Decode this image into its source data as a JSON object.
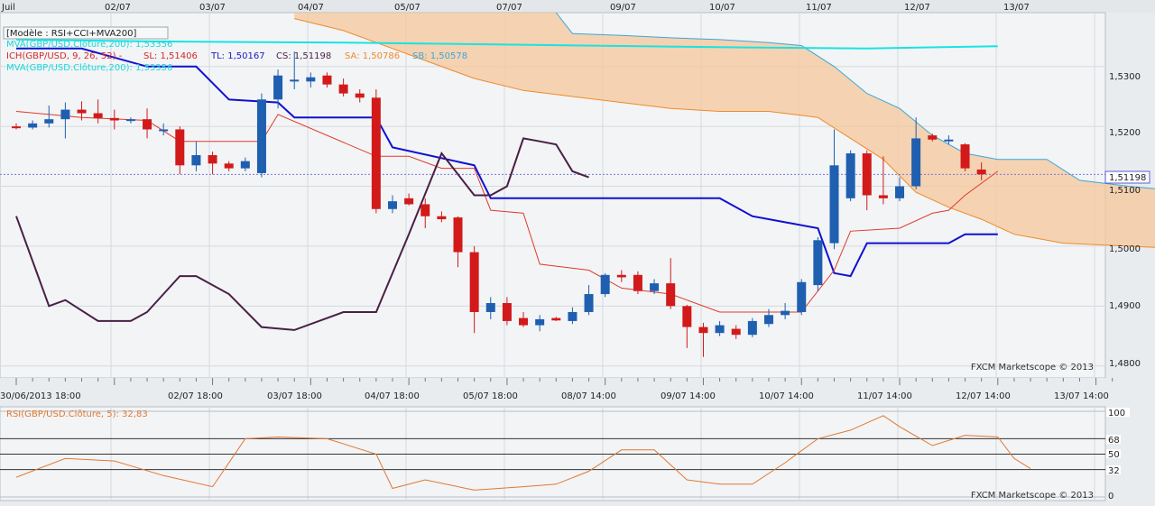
{
  "top_axis": {
    "labels": [
      "Juil",
      "02/07",
      "03/07",
      "04/07",
      "05/07",
      "07/07",
      "09/07",
      "10/07",
      "11/07",
      "12/07",
      "13/07"
    ]
  },
  "main_panel": {
    "template_label": "[Modèle : RSI+CCI+MVA200]",
    "legend_mva_top": "MVA(GBP/USD.Clôture,200): 1,53356",
    "legend_ich_name": "ICH(GBP/USD, 9, 26, 52) -",
    "legend_sl": "SL: 1,51406",
    "legend_tl": "TL: 1,50167",
    "legend_cs": "CS: 1,51198",
    "legend_sa": "SA: 1,50786",
    "legend_sb": "SB: 1,50578",
    "legend_mva_bottom": "MVA(GBP/USD.Clôture,200): 1,53356",
    "price_labels": [
      "1,5300",
      "1,5200",
      "1,5100",
      "1,5000",
      "1,4900",
      "1,4800"
    ],
    "current_price_label": "1,51198",
    "watermark": "FXCM Marketscope © 2013"
  },
  "bottom_axis": {
    "labels": [
      "30/06/2013 18:00",
      "02/07 18:00",
      "03/07 18:00",
      "04/07 18:00",
      "05/07 18:00",
      "08/07 14:00",
      "09/07 14:00",
      "10/07 14:00",
      "11/07 14:00",
      "12/07 14:00",
      "13/07 14:00"
    ]
  },
  "rsi_panel": {
    "legend": "RSI(GBP/USD.Clôture, 5): 32,83",
    "levels": [
      "100",
      "68",
      "50",
      "32",
      "0"
    ],
    "watermark": "FXCM Marketscope © 2013"
  },
  "colors": {
    "bull": "#1f5fb0",
    "bear": "#d21a1a",
    "mva": "#19e3e3",
    "tenkan": "#e03a2a",
    "kijun": "#1010d0",
    "chikou": "#4a1f44",
    "span_a": "#f08a2a",
    "span_b": "#3aa8d8",
    "cloud": "#f5c79a",
    "rsi": "#e07830"
  },
  "chart_data": {
    "type": "candlestick",
    "symbol": "GBP/USD",
    "ylim": [
      1.478,
      1.539
    ],
    "candles": [
      {
        "o": 1.52,
        "h": 1.5205,
        "l": 1.5195,
        "c": 1.5198
      },
      {
        "o": 1.5198,
        "h": 1.521,
        "l": 1.5195,
        "c": 1.5205
      },
      {
        "o": 1.5205,
        "h": 1.5235,
        "l": 1.5198,
        "c": 1.5212
      },
      {
        "o": 1.5212,
        "h": 1.524,
        "l": 1.518,
        "c": 1.5228
      },
      {
        "o": 1.5228,
        "h": 1.5242,
        "l": 1.521,
        "c": 1.5222
      },
      {
        "o": 1.5222,
        "h": 1.5245,
        "l": 1.5205,
        "c": 1.5214
      },
      {
        "o": 1.5214,
        "h": 1.5228,
        "l": 1.5195,
        "c": 1.521
      },
      {
        "o": 1.521,
        "h": 1.5215,
        "l": 1.5205,
        "c": 1.5212
      },
      {
        "o": 1.5212,
        "h": 1.523,
        "l": 1.518,
        "c": 1.5195
      },
      {
        "o": 1.5195,
        "h": 1.5205,
        "l": 1.5185,
        "c": 1.5195
      },
      {
        "o": 1.5195,
        "h": 1.52,
        "l": 1.512,
        "c": 1.5135
      },
      {
        "o": 1.5135,
        "h": 1.5175,
        "l": 1.5125,
        "c": 1.5152
      },
      {
        "o": 1.5152,
        "h": 1.5158,
        "l": 1.512,
        "c": 1.5138
      },
      {
        "o": 1.5138,
        "h": 1.5142,
        "l": 1.5125,
        "c": 1.513
      },
      {
        "o": 1.513,
        "h": 1.5148,
        "l": 1.5125,
        "c": 1.5142
      },
      {
        "o": 1.5122,
        "h": 1.5255,
        "l": 1.5115,
        "c": 1.5245
      },
      {
        "o": 1.5245,
        "h": 1.5295,
        "l": 1.523,
        "c": 1.5285
      },
      {
        "o": 1.5275,
        "h": 1.5325,
        "l": 1.5262,
        "c": 1.5278
      },
      {
        "o": 1.5275,
        "h": 1.529,
        "l": 1.5265,
        "c": 1.5282
      },
      {
        "o": 1.5285,
        "h": 1.529,
        "l": 1.5265,
        "c": 1.527
      },
      {
        "o": 1.527,
        "h": 1.528,
        "l": 1.525,
        "c": 1.5255
      },
      {
        "o": 1.5255,
        "h": 1.5262,
        "l": 1.524,
        "c": 1.5248
      },
      {
        "o": 1.5248,
        "h": 1.5262,
        "l": 1.5055,
        "c": 1.5062
      },
      {
        "o": 1.5062,
        "h": 1.5085,
        "l": 1.5055,
        "c": 1.5075
      },
      {
        "o": 1.508,
        "h": 1.5088,
        "l": 1.5068,
        "c": 1.507
      },
      {
        "o": 1.507,
        "h": 1.508,
        "l": 1.503,
        "c": 1.505
      },
      {
        "o": 1.505,
        "h": 1.5058,
        "l": 1.504,
        "c": 1.5045
      },
      {
        "o": 1.5048,
        "h": 1.505,
        "l": 1.4965,
        "c": 1.499
      },
      {
        "o": 1.499,
        "h": 1.5,
        "l": 1.4855,
        "c": 1.489
      },
      {
        "o": 1.489,
        "h": 1.4915,
        "l": 1.4878,
        "c": 1.4905
      },
      {
        "o": 1.4905,
        "h": 1.4915,
        "l": 1.4868,
        "c": 1.4875
      },
      {
        "o": 1.488,
        "h": 1.489,
        "l": 1.4865,
        "c": 1.4868
      },
      {
        "o": 1.4868,
        "h": 1.4885,
        "l": 1.4858,
        "c": 1.4878
      },
      {
        "o": 1.488,
        "h": 1.4882,
        "l": 1.4875,
        "c": 1.4876
      },
      {
        "o": 1.4875,
        "h": 1.4898,
        "l": 1.487,
        "c": 1.489
      },
      {
        "o": 1.489,
        "h": 1.4935,
        "l": 1.4885,
        "c": 1.492
      },
      {
        "o": 1.492,
        "h": 1.4955,
        "l": 1.4915,
        "c": 1.4952
      },
      {
        "o": 1.4952,
        "h": 1.496,
        "l": 1.494,
        "c": 1.4948
      },
      {
        "o": 1.4952,
        "h": 1.4958,
        "l": 1.492,
        "c": 1.4925
      },
      {
        "o": 1.4925,
        "h": 1.4945,
        "l": 1.492,
        "c": 1.4938
      },
      {
        "o": 1.4938,
        "h": 1.498,
        "l": 1.4895,
        "c": 1.49
      },
      {
        "o": 1.49,
        "h": 1.4902,
        "l": 1.483,
        "c": 1.4865
      },
      {
        "o": 1.4865,
        "h": 1.4872,
        "l": 1.4815,
        "c": 1.4855
      },
      {
        "o": 1.4855,
        "h": 1.4875,
        "l": 1.485,
        "c": 1.4868
      },
      {
        "o": 1.4862,
        "h": 1.4868,
        "l": 1.4845,
        "c": 1.4852
      },
      {
        "o": 1.4852,
        "h": 1.488,
        "l": 1.4848,
        "c": 1.4875
      },
      {
        "o": 1.487,
        "h": 1.4895,
        "l": 1.4865,
        "c": 1.4885
      },
      {
        "o": 1.4885,
        "h": 1.4905,
        "l": 1.4878,
        "c": 1.4892
      },
      {
        "o": 1.489,
        "h": 1.4945,
        "l": 1.4885,
        "c": 1.494
      },
      {
        "o": 1.4935,
        "h": 1.5015,
        "l": 1.4925,
        "c": 1.501
      },
      {
        "o": 1.5005,
        "h": 1.5195,
        "l": 1.4995,
        "c": 1.5135
      },
      {
        "o": 1.508,
        "h": 1.516,
        "l": 1.5075,
        "c": 1.5155
      },
      {
        "o": 1.5155,
        "h": 1.516,
        "l": 1.506,
        "c": 1.5085
      },
      {
        "o": 1.5085,
        "h": 1.515,
        "l": 1.507,
        "c": 1.508
      },
      {
        "o": 1.508,
        "h": 1.5115,
        "l": 1.5075,
        "c": 1.51
      },
      {
        "o": 1.51,
        "h": 1.5215,
        "l": 1.5095,
        "c": 1.518
      },
      {
        "o": 1.5185,
        "h": 1.5188,
        "l": 1.5175,
        "c": 1.5178
      },
      {
        "o": 1.5175,
        "h": 1.5185,
        "l": 1.517,
        "c": 1.5178
      },
      {
        "o": 1.517,
        "h": 1.5172,
        "l": 1.5125,
        "c": 1.513
      },
      {
        "o": 1.5128,
        "h": 1.514,
        "l": 1.511,
        "c": 1.512
      }
    ],
    "mva200": [
      [
        0,
        1.5345
      ],
      [
        8,
        1.5342
      ],
      [
        20,
        1.534
      ],
      [
        32,
        1.5336
      ],
      [
        44,
        1.5332
      ],
      [
        52,
        1.533
      ],
      [
        60,
        1.5334
      ]
    ],
    "tenkan": [
      [
        0,
        1.5225
      ],
      [
        4,
        1.5215
      ],
      [
        8,
        1.521
      ],
      [
        10,
        1.5175
      ],
      [
        13,
        1.5175
      ],
      [
        15,
        1.5175
      ],
      [
        16,
        1.522
      ],
      [
        22,
        1.515
      ],
      [
        24,
        1.515
      ],
      [
        26,
        1.513
      ],
      [
        28,
        1.513
      ],
      [
        29,
        1.506
      ],
      [
        31,
        1.5055
      ],
      [
        32,
        1.497
      ],
      [
        35,
        1.496
      ],
      [
        37,
        1.493
      ],
      [
        40,
        1.492
      ],
      [
        43,
        1.489
      ],
      [
        48,
        1.489
      ],
      [
        50,
        1.496
      ],
      [
        51,
        1.5025
      ],
      [
        54,
        1.503
      ],
      [
        56,
        1.5055
      ],
      [
        57,
        1.506
      ],
      [
        58,
        1.5085
      ],
      [
        60,
        1.5125
      ]
    ],
    "kijun": [
      [
        0,
        1.533
      ],
      [
        4,
        1.533
      ],
      [
        8,
        1.53
      ],
      [
        11,
        1.53
      ],
      [
        13,
        1.5245
      ],
      [
        16,
        1.524
      ],
      [
        17,
        1.5215
      ],
      [
        22,
        1.5215
      ],
      [
        23,
        1.5165
      ],
      [
        28,
        1.5135
      ],
      [
        29,
        1.508
      ],
      [
        43,
        1.508
      ],
      [
        45,
        1.505
      ],
      [
        47,
        1.504
      ],
      [
        49,
        1.503
      ],
      [
        50,
        1.4955
      ],
      [
        51,
        1.495
      ],
      [
        52,
        1.5005
      ],
      [
        57,
        1.5005
      ],
      [
        58,
        1.502
      ],
      [
        60,
        1.502
      ]
    ],
    "chikou": [
      [
        0,
        1.505
      ],
      [
        2,
        1.49
      ],
      [
        3,
        1.491
      ],
      [
        5,
        1.4875
      ],
      [
        7,
        1.4875
      ],
      [
        8,
        1.489
      ],
      [
        10,
        1.495
      ],
      [
        11,
        1.495
      ],
      [
        13,
        1.492
      ],
      [
        15,
        1.4865
      ],
      [
        17,
        1.486
      ],
      [
        20,
        1.489
      ],
      [
        22,
        1.489
      ],
      [
        24,
        1.502
      ],
      [
        26,
        1.5155
      ],
      [
        28,
        1.5085
      ],
      [
        29,
        1.5085
      ],
      [
        30,
        1.51
      ],
      [
        31,
        1.518
      ],
      [
        32,
        1.5175
      ],
      [
        33,
        1.517
      ],
      [
        34,
        1.5125
      ],
      [
        35,
        1.5115
      ]
    ],
    "span_a": [
      [
        17,
        1.538
      ],
      [
        20,
        1.536
      ],
      [
        22,
        1.534
      ],
      [
        25,
        1.531
      ],
      [
        28,
        1.528
      ],
      [
        31,
        1.526
      ],
      [
        34,
        1.525
      ],
      [
        37,
        1.524
      ],
      [
        40,
        1.523
      ],
      [
        43,
        1.5225
      ],
      [
        46,
        1.5225
      ],
      [
        49,
        1.5215
      ],
      [
        51,
        1.518
      ],
      [
        53,
        1.5145
      ],
      [
        55,
        1.509
      ],
      [
        57,
        1.5065
      ],
      [
        59,
        1.5045
      ],
      [
        61,
        1.502
      ],
      [
        64,
        1.5005
      ],
      [
        68,
        1.5
      ],
      [
        72,
        1.4995
      ]
    ],
    "span_b": [
      [
        33,
        1.539
      ],
      [
        34,
        1.5355
      ],
      [
        37,
        1.5352
      ],
      [
        40,
        1.5348
      ],
      [
        43,
        1.5345
      ],
      [
        46,
        1.534
      ],
      [
        48,
        1.5335
      ],
      [
        50,
        1.53
      ],
      [
        52,
        1.5255
      ],
      [
        54,
        1.523
      ],
      [
        56,
        1.5185
      ],
      [
        58,
        1.5155
      ],
      [
        60,
        1.5145
      ],
      [
        63,
        1.5145
      ],
      [
        65,
        1.511
      ],
      [
        68,
        1.51
      ],
      [
        70,
        1.5095
      ]
    ],
    "rsi": {
      "levels": [
        0,
        32,
        50,
        68,
        100
      ],
      "values": [
        [
          0,
          23
        ],
        [
          3,
          45
        ],
        [
          6,
          42
        ],
        [
          9,
          25
        ],
        [
          12,
          12
        ],
        [
          14,
          68
        ],
        [
          16,
          70
        ],
        [
          19,
          68
        ],
        [
          22,
          50
        ],
        [
          23,
          10
        ],
        [
          25,
          20
        ],
        [
          28,
          8
        ],
        [
          31,
          12
        ],
        [
          33,
          15
        ],
        [
          35,
          30
        ],
        [
          37,
          55
        ],
        [
          39,
          55
        ],
        [
          41,
          20
        ],
        [
          43,
          15
        ],
        [
          45,
          15
        ],
        [
          47,
          40
        ],
        [
          49,
          68
        ],
        [
          51,
          78
        ],
        [
          53,
          95
        ],
        [
          54,
          82
        ],
        [
          56,
          60
        ],
        [
          58,
          72
        ],
        [
          60,
          70
        ],
        [
          61,
          45
        ],
        [
          62,
          33
        ]
      ]
    }
  }
}
